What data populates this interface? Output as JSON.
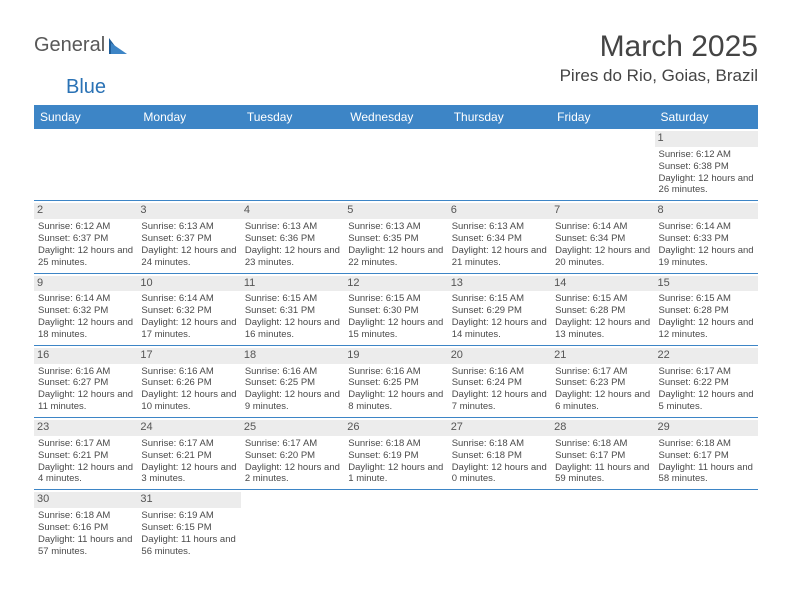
{
  "brand": {
    "general": "General",
    "blue": "Blue"
  },
  "title": "March 2025",
  "location": "Pires do Rio, Goias, Brazil",
  "colors": {
    "header_bg": "#3d85c6",
    "header_fg": "#ffffff",
    "daynum_bg": "#ececec",
    "rule": "#3d85c6"
  },
  "weekdays": [
    "Sunday",
    "Monday",
    "Tuesday",
    "Wednesday",
    "Thursday",
    "Friday",
    "Saturday"
  ],
  "weeks": [
    [
      null,
      null,
      null,
      null,
      null,
      null,
      {
        "n": "1",
        "sr": "Sunrise: 6:12 AM",
        "ss": "Sunset: 6:38 PM",
        "dl": "Daylight: 12 hours and 26 minutes."
      }
    ],
    [
      {
        "n": "2",
        "sr": "Sunrise: 6:12 AM",
        "ss": "Sunset: 6:37 PM",
        "dl": "Daylight: 12 hours and 25 minutes."
      },
      {
        "n": "3",
        "sr": "Sunrise: 6:13 AM",
        "ss": "Sunset: 6:37 PM",
        "dl": "Daylight: 12 hours and 24 minutes."
      },
      {
        "n": "4",
        "sr": "Sunrise: 6:13 AM",
        "ss": "Sunset: 6:36 PM",
        "dl": "Daylight: 12 hours and 23 minutes."
      },
      {
        "n": "5",
        "sr": "Sunrise: 6:13 AM",
        "ss": "Sunset: 6:35 PM",
        "dl": "Daylight: 12 hours and 22 minutes."
      },
      {
        "n": "6",
        "sr": "Sunrise: 6:13 AM",
        "ss": "Sunset: 6:34 PM",
        "dl": "Daylight: 12 hours and 21 minutes."
      },
      {
        "n": "7",
        "sr": "Sunrise: 6:14 AM",
        "ss": "Sunset: 6:34 PM",
        "dl": "Daylight: 12 hours and 20 minutes."
      },
      {
        "n": "8",
        "sr": "Sunrise: 6:14 AM",
        "ss": "Sunset: 6:33 PM",
        "dl": "Daylight: 12 hours and 19 minutes."
      }
    ],
    [
      {
        "n": "9",
        "sr": "Sunrise: 6:14 AM",
        "ss": "Sunset: 6:32 PM",
        "dl": "Daylight: 12 hours and 18 minutes."
      },
      {
        "n": "10",
        "sr": "Sunrise: 6:14 AM",
        "ss": "Sunset: 6:32 PM",
        "dl": "Daylight: 12 hours and 17 minutes."
      },
      {
        "n": "11",
        "sr": "Sunrise: 6:15 AM",
        "ss": "Sunset: 6:31 PM",
        "dl": "Daylight: 12 hours and 16 minutes."
      },
      {
        "n": "12",
        "sr": "Sunrise: 6:15 AM",
        "ss": "Sunset: 6:30 PM",
        "dl": "Daylight: 12 hours and 15 minutes."
      },
      {
        "n": "13",
        "sr": "Sunrise: 6:15 AM",
        "ss": "Sunset: 6:29 PM",
        "dl": "Daylight: 12 hours and 14 minutes."
      },
      {
        "n": "14",
        "sr": "Sunrise: 6:15 AM",
        "ss": "Sunset: 6:28 PM",
        "dl": "Daylight: 12 hours and 13 minutes."
      },
      {
        "n": "15",
        "sr": "Sunrise: 6:15 AM",
        "ss": "Sunset: 6:28 PM",
        "dl": "Daylight: 12 hours and 12 minutes."
      }
    ],
    [
      {
        "n": "16",
        "sr": "Sunrise: 6:16 AM",
        "ss": "Sunset: 6:27 PM",
        "dl": "Daylight: 12 hours and 11 minutes."
      },
      {
        "n": "17",
        "sr": "Sunrise: 6:16 AM",
        "ss": "Sunset: 6:26 PM",
        "dl": "Daylight: 12 hours and 10 minutes."
      },
      {
        "n": "18",
        "sr": "Sunrise: 6:16 AM",
        "ss": "Sunset: 6:25 PM",
        "dl": "Daylight: 12 hours and 9 minutes."
      },
      {
        "n": "19",
        "sr": "Sunrise: 6:16 AM",
        "ss": "Sunset: 6:25 PM",
        "dl": "Daylight: 12 hours and 8 minutes."
      },
      {
        "n": "20",
        "sr": "Sunrise: 6:16 AM",
        "ss": "Sunset: 6:24 PM",
        "dl": "Daylight: 12 hours and 7 minutes."
      },
      {
        "n": "21",
        "sr": "Sunrise: 6:17 AM",
        "ss": "Sunset: 6:23 PM",
        "dl": "Daylight: 12 hours and 6 minutes."
      },
      {
        "n": "22",
        "sr": "Sunrise: 6:17 AM",
        "ss": "Sunset: 6:22 PM",
        "dl": "Daylight: 12 hours and 5 minutes."
      }
    ],
    [
      {
        "n": "23",
        "sr": "Sunrise: 6:17 AM",
        "ss": "Sunset: 6:21 PM",
        "dl": "Daylight: 12 hours and 4 minutes."
      },
      {
        "n": "24",
        "sr": "Sunrise: 6:17 AM",
        "ss": "Sunset: 6:21 PM",
        "dl": "Daylight: 12 hours and 3 minutes."
      },
      {
        "n": "25",
        "sr": "Sunrise: 6:17 AM",
        "ss": "Sunset: 6:20 PM",
        "dl": "Daylight: 12 hours and 2 minutes."
      },
      {
        "n": "26",
        "sr": "Sunrise: 6:18 AM",
        "ss": "Sunset: 6:19 PM",
        "dl": "Daylight: 12 hours and 1 minute."
      },
      {
        "n": "27",
        "sr": "Sunrise: 6:18 AM",
        "ss": "Sunset: 6:18 PM",
        "dl": "Daylight: 12 hours and 0 minutes."
      },
      {
        "n": "28",
        "sr": "Sunrise: 6:18 AM",
        "ss": "Sunset: 6:17 PM",
        "dl": "Daylight: 11 hours and 59 minutes."
      },
      {
        "n": "29",
        "sr": "Sunrise: 6:18 AM",
        "ss": "Sunset: 6:17 PM",
        "dl": "Daylight: 11 hours and 58 minutes."
      }
    ],
    [
      {
        "n": "30",
        "sr": "Sunrise: 6:18 AM",
        "ss": "Sunset: 6:16 PM",
        "dl": "Daylight: 11 hours and 57 minutes."
      },
      {
        "n": "31",
        "sr": "Sunrise: 6:19 AM",
        "ss": "Sunset: 6:15 PM",
        "dl": "Daylight: 11 hours and 56 minutes."
      },
      null,
      null,
      null,
      null,
      null
    ]
  ]
}
